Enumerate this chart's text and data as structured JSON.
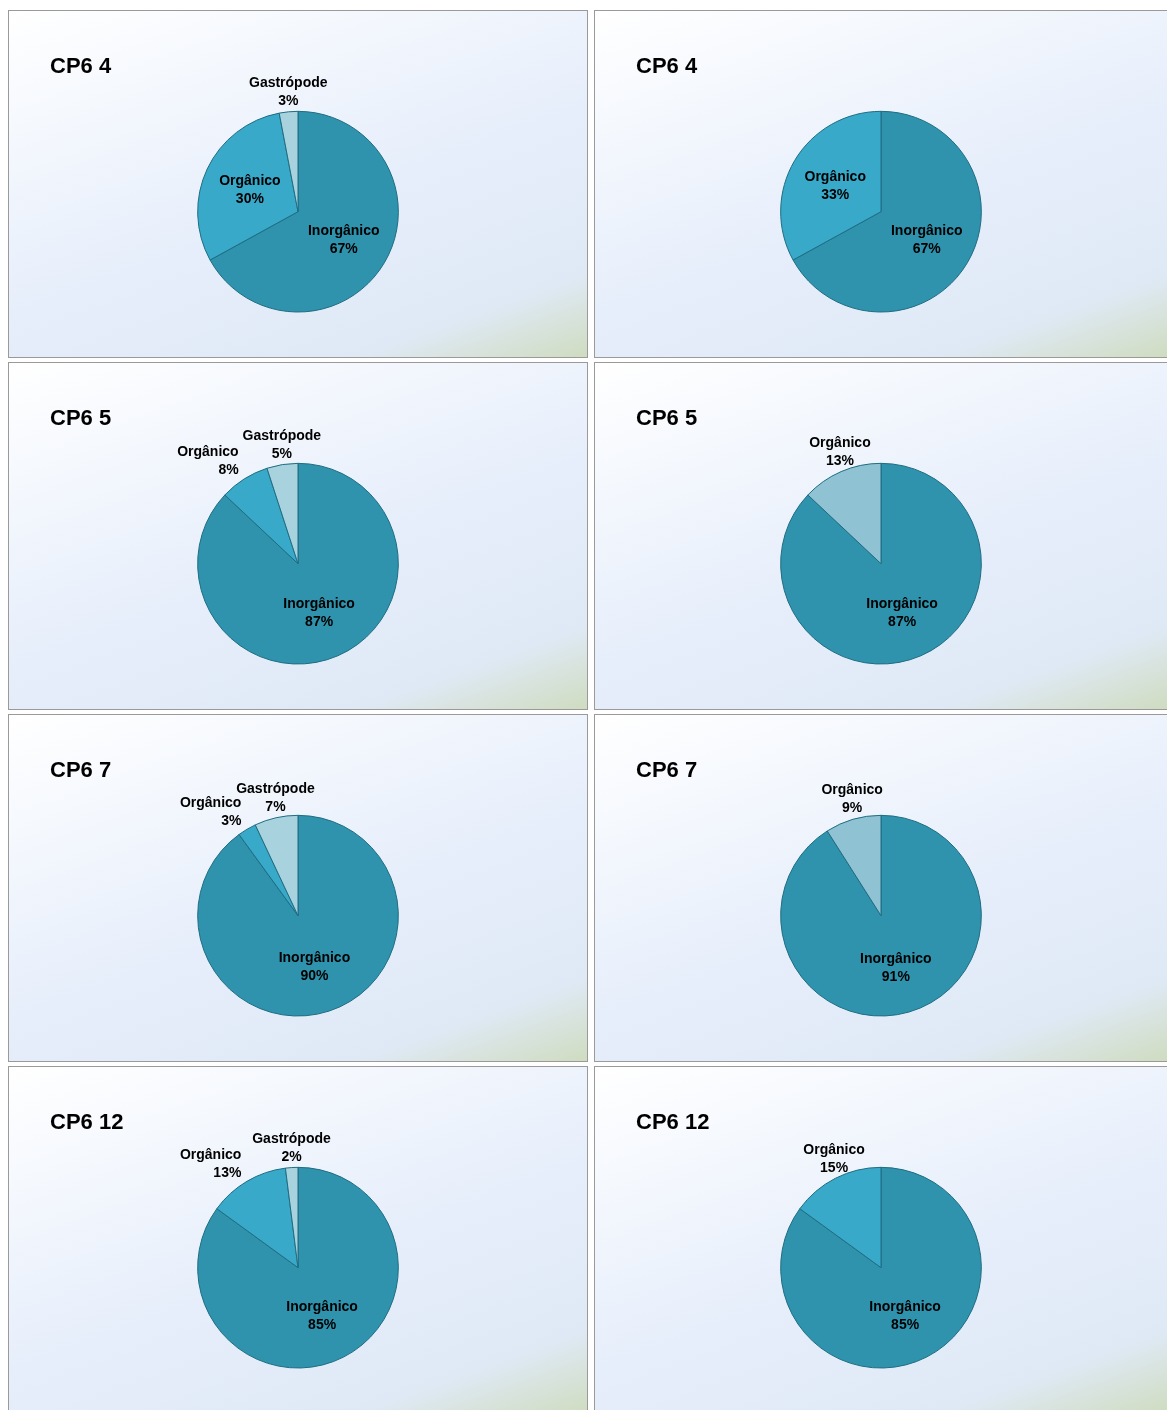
{
  "chart_data": [
    {
      "type": "pie",
      "title": "CP6 4",
      "categories": [
        "Inorgânico",
        "Orgânico",
        "Gastrópode"
      ],
      "values": [
        67,
        30,
        3
      ],
      "value_labels": [
        "67%",
        "30%",
        "3%"
      ],
      "colors": [
        "#2f93ae",
        "#38a9c9",
        "#a9d2df"
      ]
    },
    {
      "type": "pie",
      "title": "CP6 4",
      "categories": [
        "Inorgânico",
        "Orgânico"
      ],
      "values": [
        67,
        33
      ],
      "value_labels": [
        "67%",
        "33%"
      ],
      "colors": [
        "#2f93ae",
        "#38a9c9"
      ]
    },
    {
      "type": "pie",
      "title": "CP6 5",
      "categories": [
        "Inorgânico",
        "Orgânico",
        "Gastrópode"
      ],
      "values": [
        87,
        8,
        5
      ],
      "value_labels": [
        "87%",
        "8%",
        "5%"
      ],
      "colors": [
        "#2f93ae",
        "#38a9c9",
        "#a9d2df"
      ]
    },
    {
      "type": "pie",
      "title": "CP6 5",
      "categories": [
        "Inorgânico",
        "Orgânico"
      ],
      "values": [
        87,
        13
      ],
      "value_labels": [
        "87%",
        "13%"
      ],
      "colors": [
        "#2f93ae",
        "#8fc3d3"
      ]
    },
    {
      "type": "pie",
      "title": "CP6 7",
      "categories": [
        "Inorgânico",
        "Orgânico",
        "Gastrópode"
      ],
      "values": [
        90,
        3,
        7
      ],
      "value_labels": [
        "90%",
        "3%",
        "7%"
      ],
      "colors": [
        "#2f93ae",
        "#38a9c9",
        "#a9d2df"
      ]
    },
    {
      "type": "pie",
      "title": "CP6 7",
      "categories": [
        "Inorgânico",
        "Orgânico"
      ],
      "values": [
        91,
        9
      ],
      "value_labels": [
        "91%",
        "9%"
      ],
      "colors": [
        "#2f93ae",
        "#8fc3d3"
      ]
    },
    {
      "type": "pie",
      "title": "CP6 12",
      "categories": [
        "Inorgânico",
        "Orgânico",
        "Gastrópode"
      ],
      "values": [
        85,
        13,
        2
      ],
      "value_labels": [
        "85%",
        "13%",
        "2%"
      ],
      "colors": [
        "#2f93ae",
        "#38a9c9",
        "#a9d2df"
      ]
    },
    {
      "type": "pie",
      "title": "CP6 12",
      "categories": [
        "Inorgânico",
        "Orgânico"
      ],
      "values": [
        85,
        15
      ],
      "value_labels": [
        "85%",
        "15%"
      ],
      "colors": [
        "#2f93ae",
        "#38a9c9"
      ]
    }
  ]
}
